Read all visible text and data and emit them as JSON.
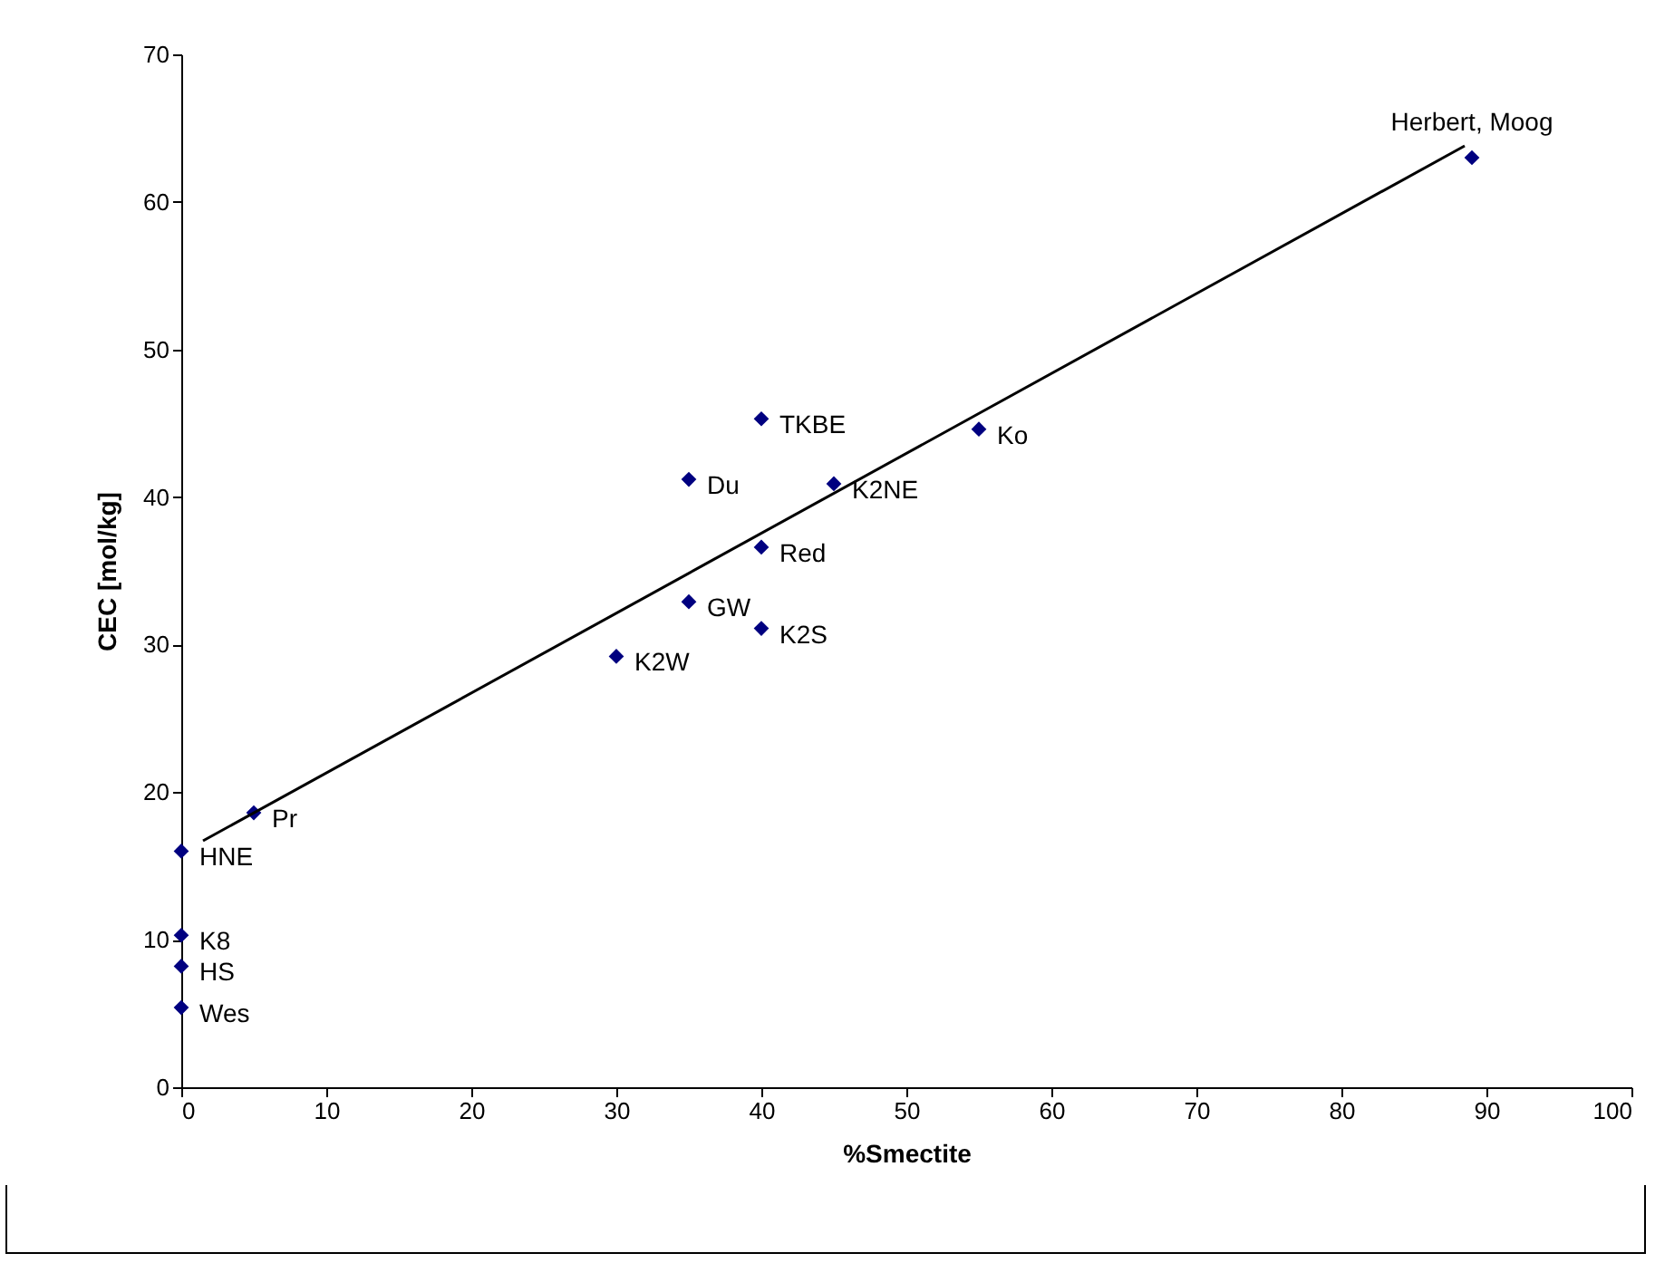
{
  "chart_data": {
    "type": "scatter",
    "xlabel": "%Smectite",
    "ylabel": "CEC [mol/kg]",
    "xlim": [
      0,
      100
    ],
    "ylim": [
      0,
      70
    ],
    "xticks": [
      0,
      10,
      20,
      30,
      40,
      50,
      60,
      70,
      80,
      90,
      100
    ],
    "yticks": [
      0,
      10,
      20,
      30,
      40,
      50,
      60,
      70
    ],
    "grid": false,
    "marker": "diamond",
    "series": [
      {
        "color": "#000080",
        "x": [
          89,
          40,
          35,
          55,
          45,
          40,
          35,
          40,
          30,
          5,
          0,
          0,
          0,
          0
        ],
        "values": [
          63.0,
          45.3,
          41.2,
          44.6,
          40.9,
          36.6,
          32.9,
          31.1,
          29.2,
          18.6,
          16.0,
          10.3,
          8.2,
          5.4
        ]
      },
      {
        "type": "line",
        "color": "#000000",
        "line_style": "solid",
        "marker": "none",
        "x": [
          1.5,
          88.5
        ],
        "values": [
          16.7,
          63.8
        ]
      }
    ],
    "annotations": [
      {
        "text": "Herbert, Moog",
        "x": 89,
        "y": 63.0
      },
      {
        "text": "TKBE",
        "x": 40,
        "y": 45.3
      },
      {
        "text": "Du",
        "x": 35,
        "y": 41.2
      },
      {
        "text": "Ko",
        "x": 55,
        "y": 44.6
      },
      {
        "text": "K2NE",
        "x": 45,
        "y": 40.9
      },
      {
        "text": "Red",
        "x": 40,
        "y": 36.6
      },
      {
        "text": "GW",
        "x": 35,
        "y": 32.9
      },
      {
        "text": "K2S",
        "x": 40,
        "y": 31.1
      },
      {
        "text": "K2W",
        "x": 30,
        "y": 29.2
      },
      {
        "text": "Pr",
        "x": 5,
        "y": 18.6
      },
      {
        "text": "HNE",
        "x": 0,
        "y": 16.0
      },
      {
        "text": "K8",
        "x": 0,
        "y": 10.3
      },
      {
        "text": "HS",
        "x": 0,
        "y": 8.2
      },
      {
        "text": "Wes",
        "x": 0,
        "y": 5.4
      }
    ]
  }
}
